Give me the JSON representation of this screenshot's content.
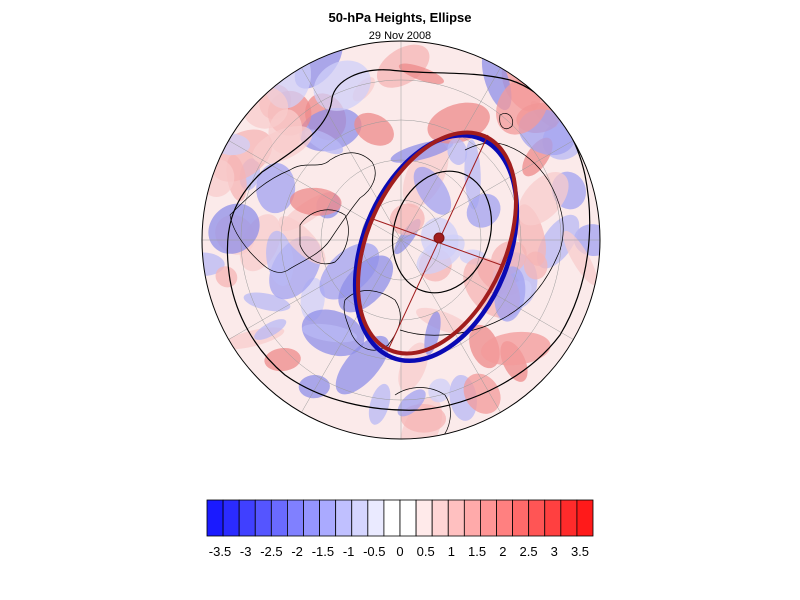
{
  "title": "50-hPa Heights, Ellipse",
  "subtitle": "29 Nov 2008",
  "map": {
    "projection": "polar stereographic (north pole)",
    "contour_line_color": "#000000",
    "ellipse_outlines": [
      "#0a0ab4",
      "#a11d1d"
    ]
  },
  "colorbar": {
    "colors": [
      "#1a1aff",
      "#2b2bff",
      "#4040ff",
      "#5555ff",
      "#6a6aff",
      "#8080ff",
      "#9595ff",
      "#aaaaff",
      "#c0c0ff",
      "#d5d5ff",
      "#eaeaff",
      "#ffffff",
      "#ffffff",
      "#ffeaea",
      "#ffd5d5",
      "#ffc0c0",
      "#ffaaaa",
      "#ff9595",
      "#ff8080",
      "#ff6a6a",
      "#ff5555",
      "#ff4040",
      "#ff2b2b",
      "#ff1a1a"
    ],
    "tick_labels": [
      "-3.5",
      "-3",
      "-2.5",
      "-2",
      "-1.5",
      "-1",
      "-0.5",
      "0",
      "0.5",
      "1",
      "1.5",
      "2",
      "2.5",
      "3",
      "3.5"
    ]
  }
}
